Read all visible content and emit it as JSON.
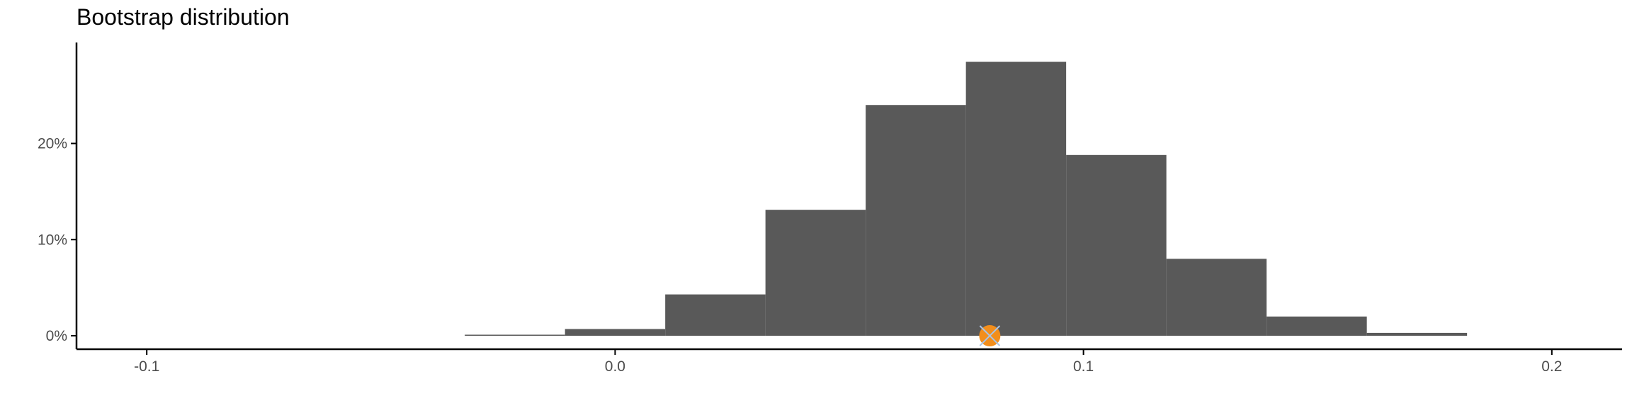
{
  "chart_data": {
    "type": "bar",
    "title": "Bootstrap distribution",
    "xlabel": "",
    "ylabel": "",
    "x_ticks": [
      -0.1,
      0.0,
      0.1,
      0.2
    ],
    "x_tick_labels": [
      "-0.1",
      "0.0",
      "0.1",
      "0.2"
    ],
    "y_ticks": [
      0,
      0.1,
      0.2
    ],
    "y_tick_labels": [
      "0%",
      "10%",
      "20%"
    ],
    "xlim": [
      -0.115,
      0.215
    ],
    "ylim": [
      -0.014,
      0.305
    ],
    "bin_width": 0.0214,
    "bins": [
      {
        "x0": -0.0321,
        "x1": -0.0107,
        "value": 0.0005
      },
      {
        "x0": -0.0107,
        "x1": 0.0107,
        "value": 0.007
      },
      {
        "x0": 0.0107,
        "x1": 0.0321,
        "value": 0.043
      },
      {
        "x0": 0.0321,
        "x1": 0.0535,
        "value": 0.131
      },
      {
        "x0": 0.0535,
        "x1": 0.0749,
        "value": 0.24
      },
      {
        "x0": 0.0749,
        "x1": 0.0963,
        "value": 0.285
      },
      {
        "x0": 0.0963,
        "x1": 0.1177,
        "value": 0.188
      },
      {
        "x0": 0.1177,
        "x1": 0.1391,
        "value": 0.08
      },
      {
        "x0": 0.1391,
        "x1": 0.1605,
        "value": 0.02
      },
      {
        "x0": 0.1605,
        "x1": 0.1819,
        "value": 0.003
      }
    ],
    "point_estimate": {
      "x": 0.08,
      "y": 0
    },
    "colors": {
      "bars": "#595959",
      "point_fill": "#f28e1c",
      "point_cross": "#a9c4e6",
      "axis": "#000000",
      "tick_text": "#4d4d4d"
    },
    "grid": false,
    "legend": "none"
  }
}
